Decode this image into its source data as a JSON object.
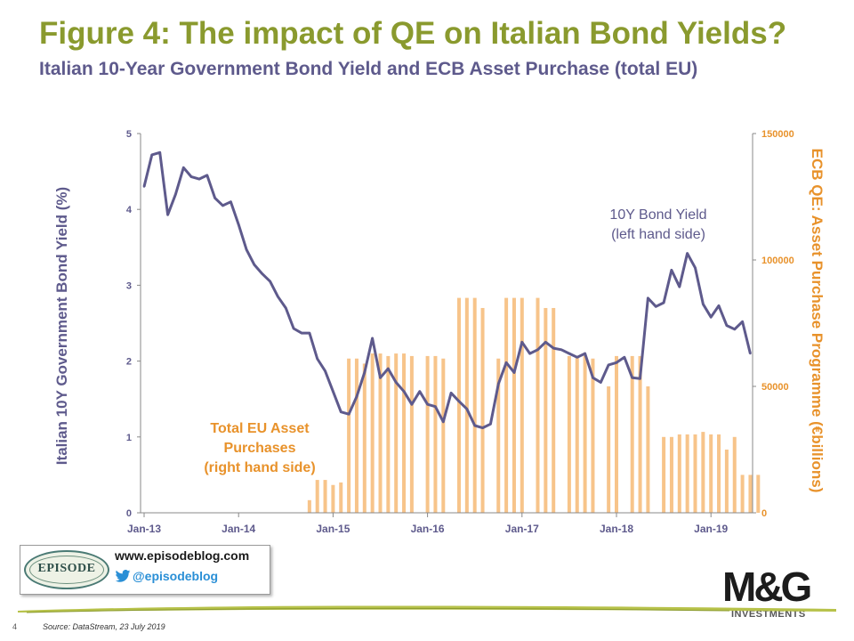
{
  "title": "Figure 4: The impact of QE on Italian Bond Yields?",
  "subtitle": "Italian 10-Year Government Bond Yield and ECB Asset Purchase (total EU)",
  "branding": {
    "blog_url": "www.episodeblog.com",
    "twitter_handle": "@episodeblog",
    "episode_logo_text": "EPISODE",
    "mg_text": "M&G",
    "mg_subtext": "INVESTMENTS"
  },
  "footer": {
    "page_number": "4",
    "source": "Source: DataStream, 23 July 2019"
  },
  "colors": {
    "title": "#8a9a2e",
    "subtitle": "#5e5a8c",
    "yield_line": "#5e5a8c",
    "purchase_bars": "#f7c48a",
    "right_axis": "#e8922b"
  },
  "chart_data": {
    "type": "bar+line",
    "x_tick_labels": [
      "Jan-13",
      "Jan-14",
      "Jan-15",
      "Jan-16",
      "Jan-17",
      "Jan-18",
      "Jan-19"
    ],
    "ylabel_left": "Italian 10Y Government Bond Yield (%)",
    "ylabel_right": "ECB QE: Asset Purchase Programme (€billions)",
    "ylim_left": [
      0,
      5
    ],
    "ylim_right": [
      0,
      150000
    ],
    "y_ticks_left": [
      "0",
      "1",
      "2",
      "3",
      "4",
      "5"
    ],
    "y_ticks_right": [
      "0",
      "50000",
      "100000",
      "150000"
    ],
    "grid": false,
    "annotations": {
      "line_label_1": "10Y Bond Yield",
      "line_label_2": "(left hand side)",
      "bar_label_1": "Total EU Asset",
      "bar_label_2": "Purchases",
      "bar_label_3": "(right hand side)"
    },
    "series": [
      {
        "name": "10Y Bond Yield",
        "axis": "left",
        "kind": "line",
        "start": "Jan-13",
        "frequency": "monthly",
        "values": [
          4.3,
          4.72,
          4.75,
          3.93,
          4.2,
          4.55,
          4.43,
          4.4,
          4.45,
          4.15,
          4.05,
          4.1,
          3.8,
          3.47,
          3.27,
          3.15,
          3.05,
          2.85,
          2.7,
          2.43,
          2.37,
          2.37,
          2.03,
          1.87,
          1.6,
          1.33,
          1.3,
          1.53,
          1.85,
          2.3,
          1.78,
          1.9,
          1.72,
          1.6,
          1.43,
          1.6,
          1.43,
          1.4,
          1.2,
          1.58,
          1.47,
          1.37,
          1.15,
          1.12,
          1.17,
          1.7,
          1.98,
          1.85,
          2.25,
          2.1,
          2.15,
          2.25,
          2.17,
          2.15,
          2.1,
          2.05,
          2.1,
          1.78,
          1.72,
          1.95,
          1.98,
          2.05,
          1.78,
          1.77,
          2.83,
          2.72,
          2.77,
          3.2,
          2.98,
          3.42,
          3.23,
          2.75,
          2.58,
          2.73,
          2.47,
          2.42,
          2.52,
          2.1
        ]
      },
      {
        "name": "Total EU Asset Purchases",
        "axis": "right",
        "kind": "bar",
        "start": "Jan-13",
        "frequency": "monthly",
        "values": [
          0,
          0,
          0,
          0,
          0,
          0,
          0,
          0,
          0,
          0,
          0,
          0,
          0,
          0,
          0,
          0,
          0,
          0,
          0,
          0,
          0,
          5000,
          13000,
          13000,
          11000,
          12000,
          61000,
          61000,
          59000,
          63000,
          63000,
          62000,
          63000,
          63000,
          62000,
          0,
          62000,
          62000,
          61000,
          0,
          85000,
          85000,
          85000,
          81000,
          0,
          61000,
          85000,
          85000,
          85000,
          0,
          85000,
          81000,
          81000,
          0,
          62000,
          62000,
          62000,
          61000,
          0,
          50000,
          62000,
          0,
          62000,
          62000,
          50000,
          0,
          30000,
          30000,
          31000,
          31000,
          31000,
          32000,
          31000,
          31000,
          25000,
          30000,
          15000,
          15000,
          15000
        ]
      }
    ]
  }
}
